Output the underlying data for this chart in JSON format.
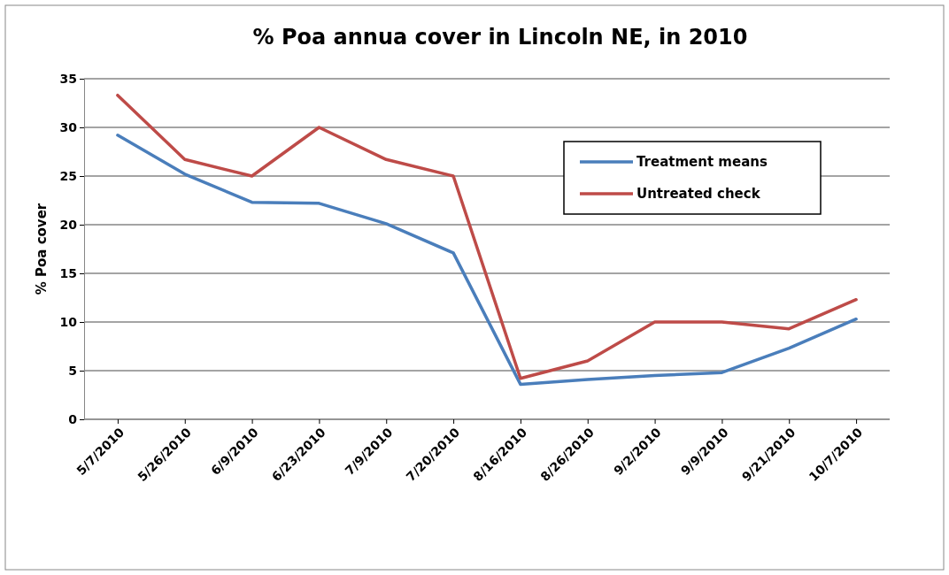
{
  "chart_data": {
    "type": "line",
    "title": "% Poa annua cover in Lincoln NE, in 2010",
    "ylabel": "% Poa cover",
    "categories": [
      "5/7/2010",
      "5/26/2010",
      "6/9/2010",
      "6/23/2010",
      "7/9/2010",
      "7/20/2010",
      "8/16/2010",
      "8/26/2010",
      "9/2/2010",
      "9/9/2010",
      "9/21/2010",
      "10/7/2010"
    ],
    "series": [
      {
        "name": "Treatment means",
        "color": "#4a7ebb",
        "values": [
          29.2,
          25.2,
          22.3,
          22.2,
          20.1,
          17.1,
          3.6,
          4.1,
          4.5,
          4.8,
          7.3,
          10.3
        ]
      },
      {
        "name": "Untreated check",
        "color": "#be4b48",
        "values": [
          33.3,
          26.7,
          25.0,
          30.0,
          26.7,
          25.0,
          4.2,
          6.0,
          10.0,
          10.0,
          9.3,
          12.3
        ]
      }
    ],
    "ylim": [
      0,
      35
    ],
    "yticks": [
      0,
      5,
      10,
      15,
      20,
      25,
      30,
      35
    ],
    "grid": "y",
    "legend": "top right",
    "marker": "none",
    "line_style": "solid"
  }
}
